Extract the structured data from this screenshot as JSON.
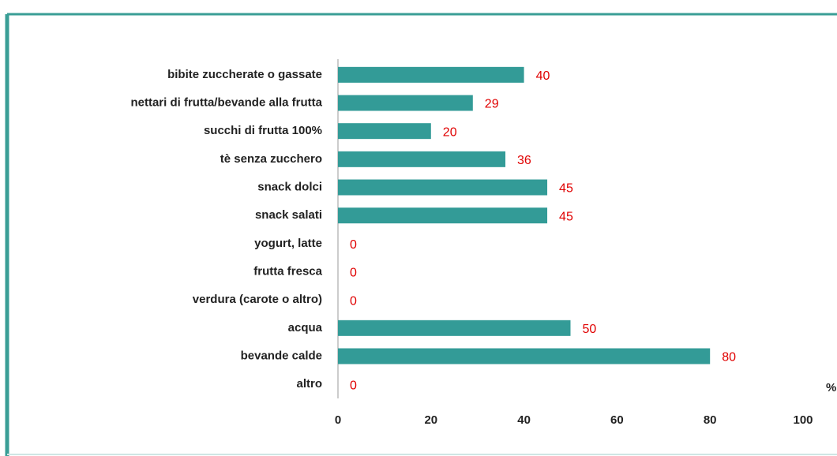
{
  "chart_data": {
    "type": "bar",
    "orientation": "horizontal",
    "categories": [
      "bibite zuccherate o gassate",
      "nettari di frutta/bevande alla frutta",
      "succhi di frutta 100%",
      "tè senza zucchero",
      "snack dolci",
      "snack salati",
      "yogurt, latte",
      "frutta fresca",
      "verdura (carote o altro)",
      "acqua",
      "bevande calde",
      "altro"
    ],
    "values": [
      40,
      29,
      20,
      36,
      45,
      45,
      0,
      0,
      0,
      50,
      80,
      0
    ],
    "color": "#339b97",
    "x_label": "%",
    "xlim": [
      0,
      100
    ],
    "xticks": [
      0,
      20,
      40,
      60,
      80,
      100
    ],
    "grid": false
  }
}
